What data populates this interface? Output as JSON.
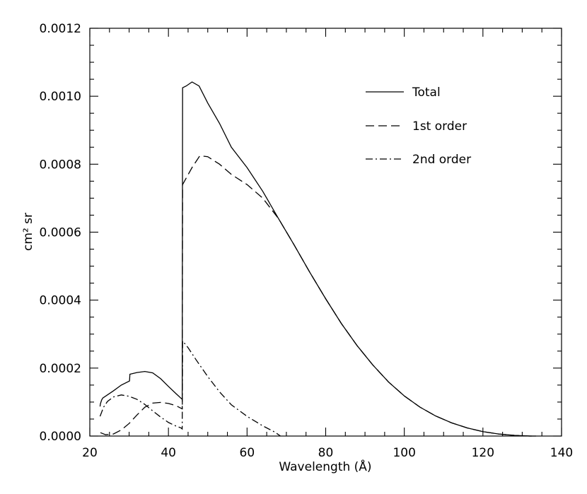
{
  "chart_data": {
    "type": "line",
    "title": "",
    "xlabel": "Wavelength (Å)",
    "ylabel": "cm² sr",
    "xlim": [
      20,
      140
    ],
    "ylim": [
      0,
      0.0012
    ],
    "x_ticks": [
      20,
      40,
      60,
      80,
      100,
      120,
      140
    ],
    "x_tick_labels": [
      "20",
      "40",
      "60",
      "80",
      "100",
      "120",
      "140"
    ],
    "y_ticks": [
      0,
      0.0002,
      0.0004,
      0.0006,
      0.0008,
      0.001,
      0.0012
    ],
    "y_tick_labels": [
      "0.0000",
      "0.0002",
      "0.0004",
      "0.0006",
      "0.0008",
      "0.0010",
      "0.0012"
    ],
    "grid": false,
    "legend_position": "top-right",
    "series": [
      {
        "name": "Total",
        "style": "solid",
        "x": [
          22.6,
          22.7,
          23.0,
          23.3,
          26,
          28,
          30.1,
          30.2,
          32,
          34,
          36,
          38,
          40,
          42,
          43.5,
          43.6,
          44.5,
          46,
          47.8,
          50,
          53,
          56,
          60,
          64,
          68,
          72,
          76,
          80,
          84,
          88,
          92,
          96,
          100,
          104,
          108,
          112,
          116,
          120,
          124,
          128,
          132,
          133.5
        ],
        "y": [
          8.7e-05,
          9.5e-05,
          0.000106,
          0.000112,
          0.000133,
          0.00015,
          0.000162,
          0.000182,
          0.000187,
          0.00019,
          0.000186,
          0.000169,
          0.000146,
          0.000124,
          0.000108,
          0.001025,
          0.00103,
          0.001042,
          0.00103,
          0.00098,
          0.00092,
          0.00085,
          0.00079,
          0.00072,
          0.00064,
          0.000562,
          0.000481,
          0.000404,
          0.000331,
          0.000266,
          0.000209,
          0.000159,
          0.000118,
          8.5e-05,
          5.9e-05,
          3.9e-05,
          2.4e-05,
          1.3e-05,
          6e-06,
          2e-06,
          0.0,
          0.0
        ]
      },
      {
        "name": "1st order",
        "style": "dashed",
        "x": [
          22.7,
          24,
          26,
          28,
          30,
          32,
          34,
          36,
          38,
          40,
          42,
          43.5,
          43.6,
          46,
          48,
          50,
          53,
          56,
          60,
          64,
          68,
          72,
          76,
          80,
          84,
          88,
          92,
          96,
          100,
          104,
          108,
          112,
          116,
          120,
          124,
          128,
          132,
          133.5
        ],
        "y": [
          1e-05,
          4e-06,
          6e-06,
          1.8e-05,
          3.7e-05,
          6.2e-05,
          8.5e-05,
          9.7e-05,
          9.9e-05,
          9.6e-05,
          8.9e-05,
          8e-05,
          0.00074,
          0.00079,
          0.000825,
          0.000822,
          0.0008,
          0.00077,
          0.00074,
          0.0007,
          0.00064,
          0.000562,
          0.000481,
          0.000404,
          0.000331,
          0.000266,
          0.000209,
          0.000159,
          0.000118,
          8.5e-05,
          5.9e-05,
          3.9e-05,
          2.4e-05,
          1.3e-05,
          6e-06,
          2e-06,
          0.0,
          0.0
        ]
      },
      {
        "name": "2nd order",
        "style": "dash-dot",
        "x": [
          22.6,
          23.0,
          23.5,
          24.5,
          26,
          28,
          30,
          32,
          34,
          36,
          38,
          40,
          42,
          43.2,
          43.5,
          43.6,
          45,
          47,
          50,
          53,
          56,
          60,
          64,
          67,
          68.5
        ],
        "y": [
          5.8e-05,
          7e-05,
          8.5e-05,
          0.000102,
          0.000115,
          0.000121,
          0.000117,
          0.000108,
          9.3e-05,
          7.4e-05,
          5.6e-05,
          4e-05,
          2.9e-05,
          2.4e-05,
          2.1e-05,
          0.00028,
          0.00026,
          0.000225,
          0.000175,
          0.00013,
          9.2e-05,
          5.8e-05,
          3e-05,
          1.2e-05,
          0.0
        ]
      }
    ]
  }
}
